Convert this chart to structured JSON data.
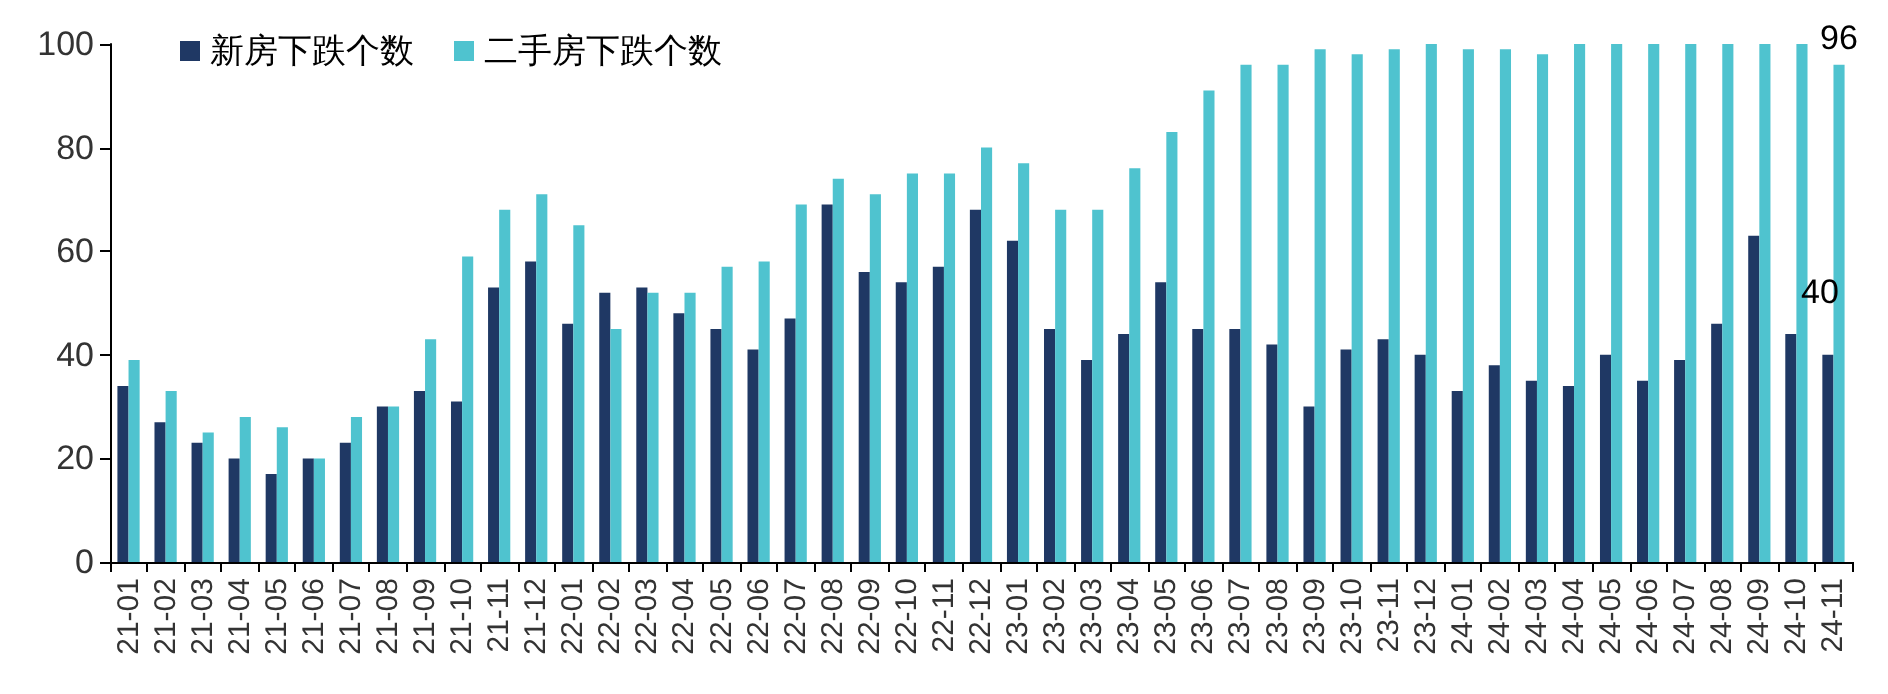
{
  "chart_data": {
    "type": "bar",
    "categories": [
      "21-01",
      "21-02",
      "21-03",
      "21-04",
      "21-05",
      "21-06",
      "21-07",
      "21-08",
      "21-09",
      "21-10",
      "21-11",
      "21-12",
      "22-01",
      "22-02",
      "22-03",
      "22-04",
      "22-05",
      "22-06",
      "22-07",
      "22-08",
      "22-09",
      "22-10",
      "22-11",
      "22-12",
      "23-01",
      "23-02",
      "23-03",
      "23-04",
      "23-05",
      "23-06",
      "23-07",
      "23-08",
      "23-09",
      "23-10",
      "23-11",
      "23-12",
      "24-01",
      "24-02",
      "24-03",
      "24-04",
      "24-05",
      "24-06",
      "24-07",
      "24-08",
      "24-09",
      "24-10",
      "24-11"
    ],
    "series": [
      {
        "name": "新房下跌个数",
        "color": "#1f3864",
        "values": [
          34,
          27,
          23,
          20,
          17,
          20,
          23,
          30,
          33,
          31,
          53,
          58,
          46,
          52,
          53,
          48,
          45,
          41,
          47,
          69,
          56,
          54,
          57,
          68,
          62,
          45,
          39,
          44,
          54,
          45,
          45,
          42,
          30,
          41,
          43,
          40,
          33,
          38,
          35,
          34,
          40,
          35,
          39,
          46,
          63,
          44,
          40
        ],
        "value_labels": [
          null,
          null,
          null,
          null,
          null,
          null,
          null,
          null,
          null,
          null,
          null,
          null,
          null,
          null,
          null,
          null,
          null,
          null,
          null,
          null,
          null,
          null,
          null,
          null,
          null,
          null,
          null,
          null,
          null,
          null,
          null,
          null,
          null,
          null,
          null,
          null,
          null,
          null,
          null,
          null,
          null,
          null,
          null,
          null,
          null,
          null,
          "40"
        ]
      },
      {
        "name": "二手房下跌个数",
        "color": "#4fc3cf",
        "values": [
          39,
          33,
          25,
          28,
          26,
          20,
          28,
          30,
          43,
          59,
          68,
          71,
          65,
          45,
          52,
          52,
          57,
          58,
          69,
          74,
          71,
          75,
          75,
          80,
          77,
          68,
          68,
          76,
          83,
          91,
          96,
          96,
          99,
          98,
          99,
          100,
          99,
          99,
          98,
          100,
          100,
          100,
          100,
          100,
          100,
          100,
          96
        ],
        "value_labels": [
          null,
          null,
          null,
          null,
          null,
          null,
          null,
          null,
          null,
          null,
          null,
          null,
          null,
          null,
          null,
          null,
          null,
          null,
          null,
          null,
          null,
          null,
          null,
          null,
          null,
          null,
          null,
          null,
          null,
          null,
          null,
          null,
          null,
          null,
          null,
          null,
          null,
          null,
          null,
          null,
          null,
          null,
          null,
          null,
          null,
          null,
          "96"
        ]
      }
    ],
    "ylim": [
      0,
      100
    ],
    "yticks": [
      0,
      20,
      40,
      60,
      80,
      100
    ],
    "grid": false,
    "legend": "top left"
  }
}
